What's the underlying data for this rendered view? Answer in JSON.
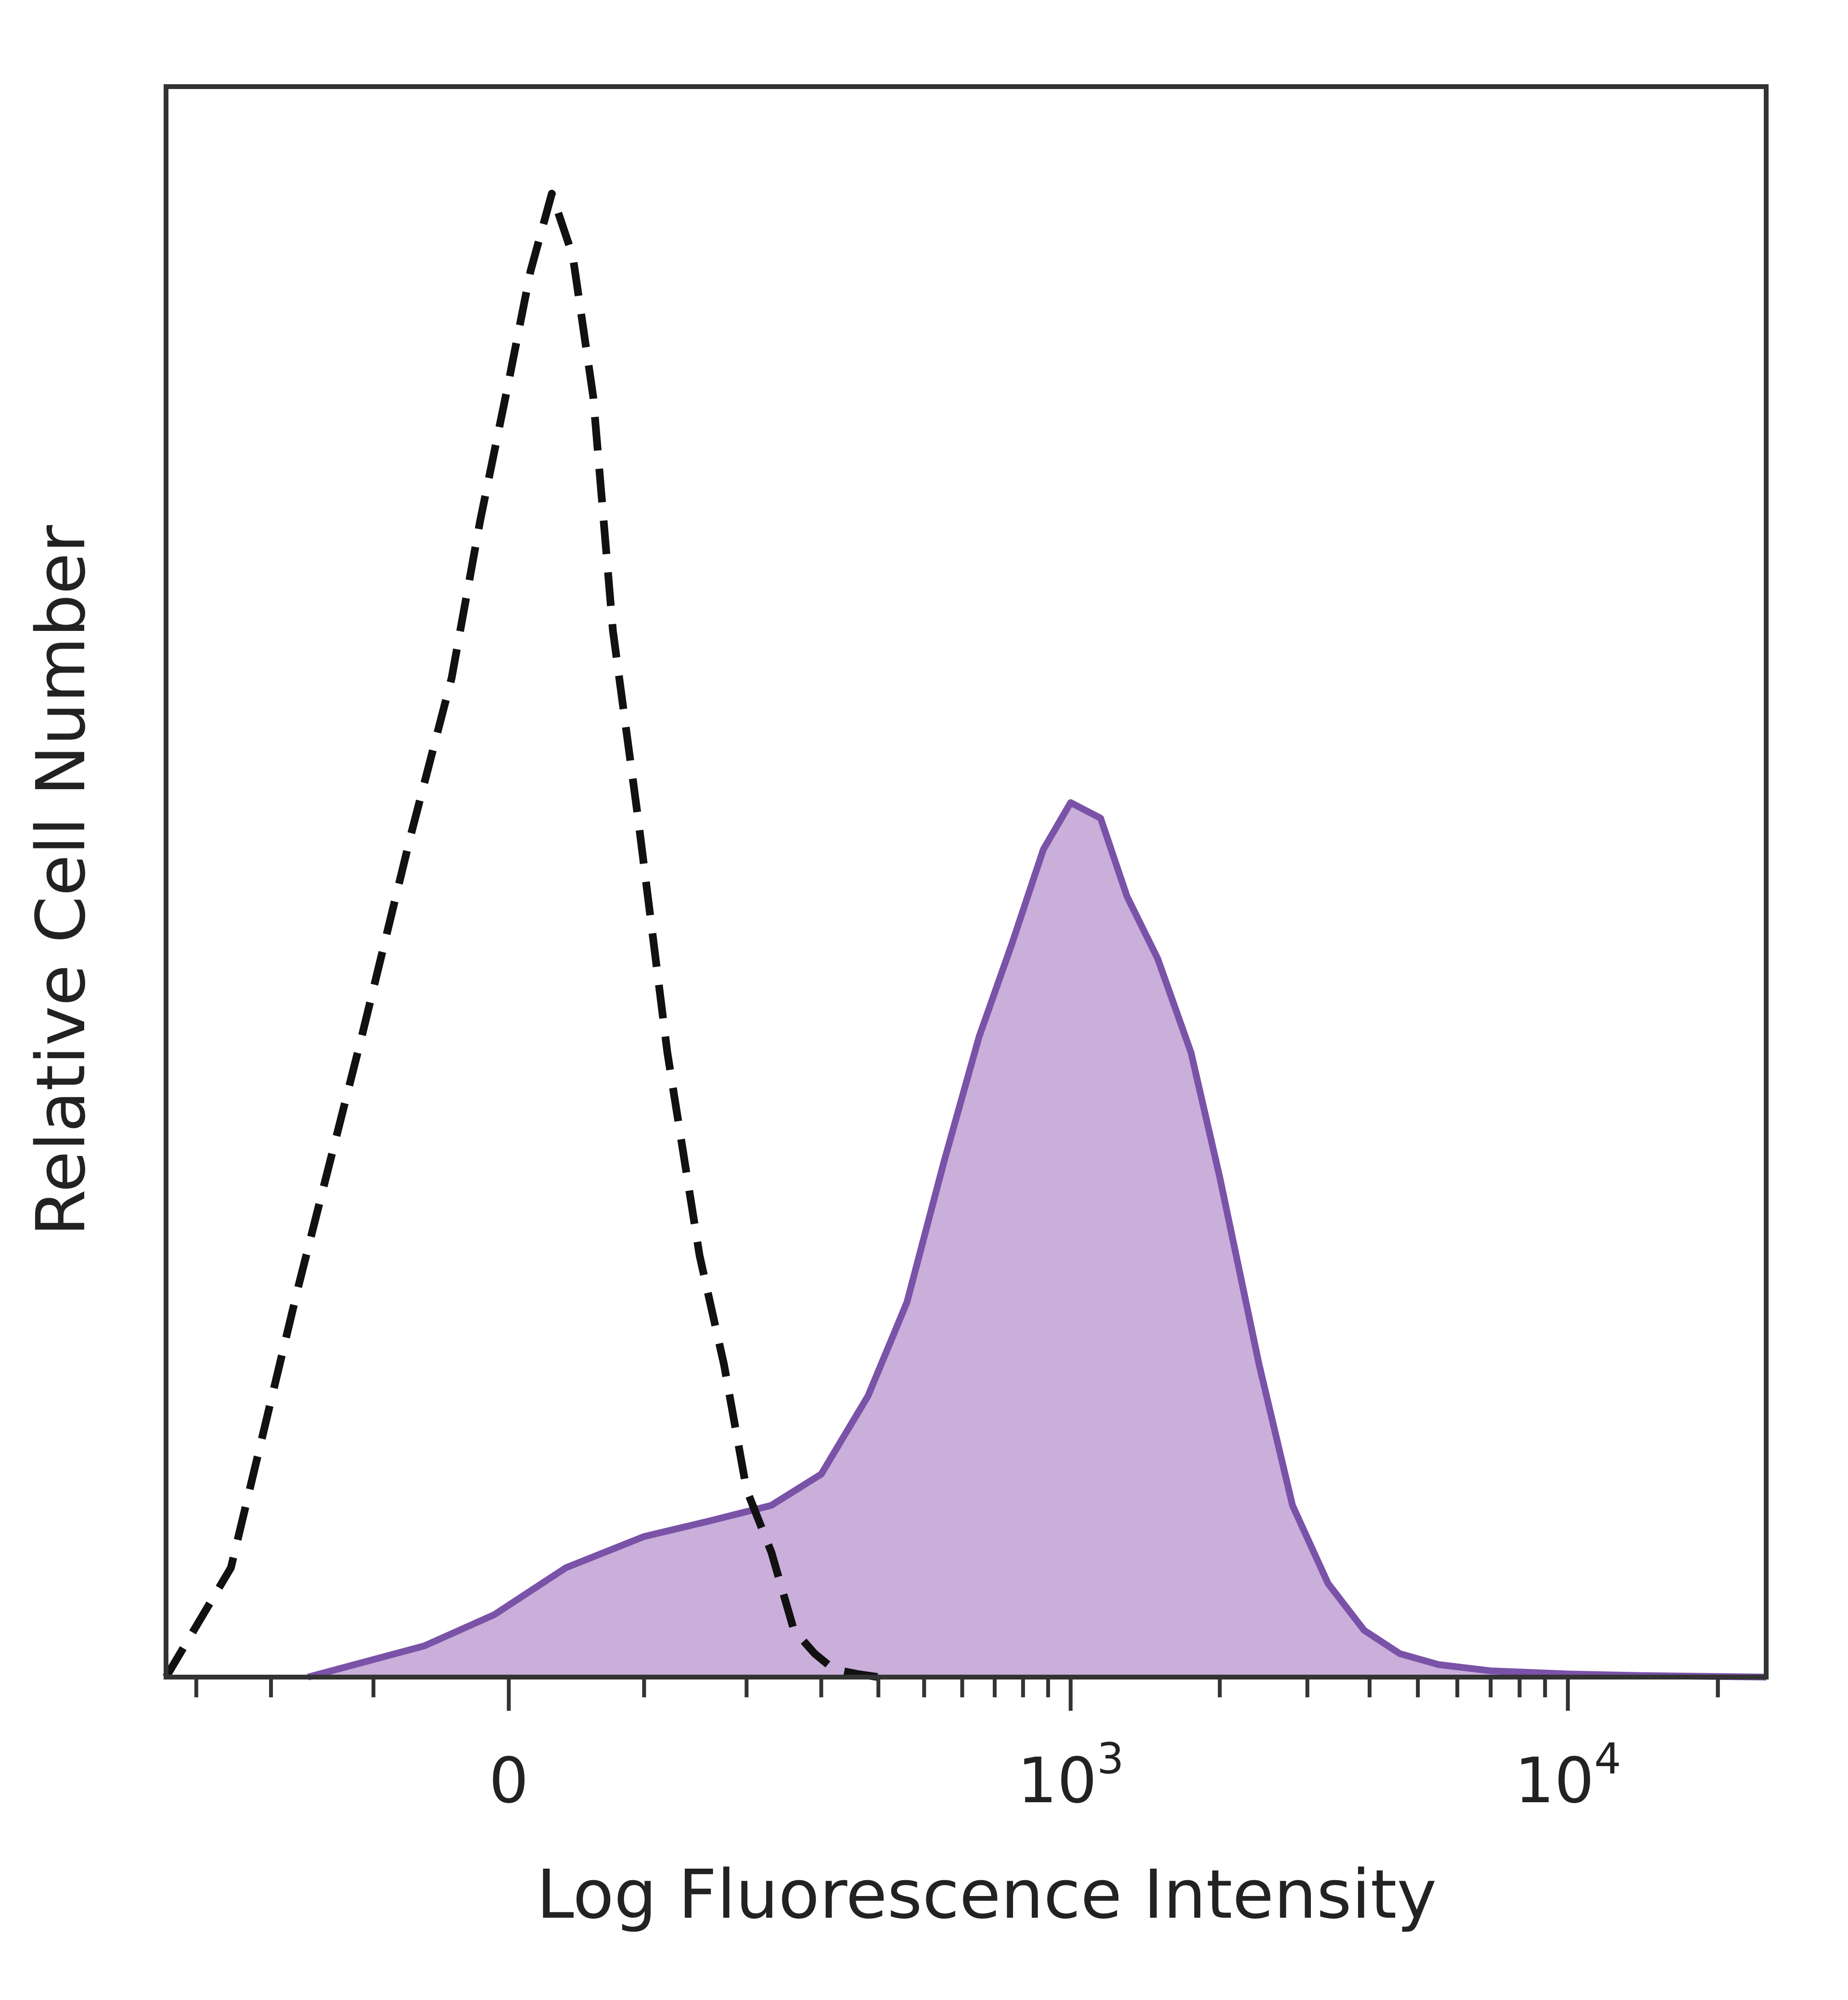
{
  "chart_data": {
    "type": "histogram",
    "xlabel": "Log Fluorescence Intensity",
    "ylabel": "Relative Cell Number",
    "x_scale": "biexponential",
    "x_ticks": [
      {
        "value": 0,
        "base": "0",
        "exp": ""
      },
      {
        "value": 1000,
        "base": "10",
        "exp": "3"
      },
      {
        "value": 10000,
        "base": "10",
        "exp": "4"
      }
    ],
    "xlim": [
      -350,
      25000
    ],
    "ylim": [
      0,
      100
    ],
    "grid": false,
    "legend": "none",
    "series": [
      {
        "style": "dashed",
        "color": "#111111",
        "fill": "none",
        "x": [
          -350,
          -250,
          -170,
          -110,
          -70,
          -40,
          -20,
          0,
          15,
          30,
          45,
          60,
          75,
          95,
          120,
          150,
          175,
          200,
          230,
          260,
          290,
          320,
          360,
          400
        ],
        "y": [
          0,
          7,
          25,
          41,
          54,
          64,
          74,
          83,
          90,
          95,
          91,
          82,
          67,
          55,
          40,
          27,
          20,
          12,
          8,
          3,
          1.5,
          0.5,
          0.2,
          0
        ]
      },
      {
        "style": "solid",
        "color": "#7a52a8",
        "fill": "#c9afd9",
        "x": [
          -160,
          -60,
          -10,
          40,
          100,
          160,
          230,
          300,
          380,
          460,
          550,
          650,
          760,
          880,
          1000,
          1150,
          1300,
          1500,
          1750,
          2000,
          2400,
          2800,
          3300,
          3900,
          4600,
          5500,
          7000,
          10000,
          14000,
          25000
        ],
        "y": [
          0,
          2,
          4,
          7,
          9,
          10,
          11,
          13,
          18,
          24,
          33,
          41,
          47,
          53,
          56,
          55,
          50,
          46,
          40,
          32,
          20,
          11,
          6,
          3,
          1.5,
          0.8,
          0.4,
          0.2,
          0.1,
          0
        ]
      }
    ]
  }
}
